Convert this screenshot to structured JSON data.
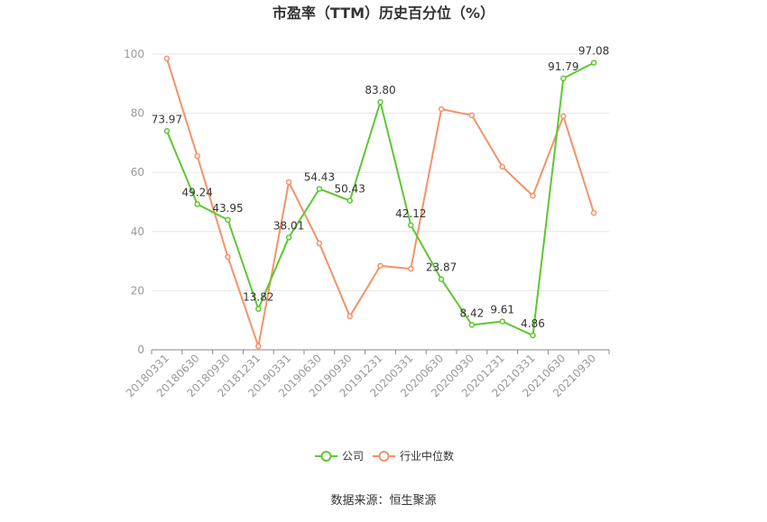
{
  "chart_data": {
    "type": "line",
    "title": "市盈率（TTM）历史百分位（%）",
    "categories": [
      "20180331",
      "20180630",
      "20180930",
      "20181231",
      "20190331",
      "20190630",
      "20190930",
      "20191231",
      "20200331",
      "20200630",
      "20200930",
      "20201231",
      "20210331",
      "20210630",
      "20210930"
    ],
    "series": [
      {
        "name": "公司",
        "color": "#5ec732",
        "show_labels": true,
        "values": [
          73.97,
          49.24,
          43.95,
          13.82,
          38.01,
          54.43,
          50.43,
          83.8,
          42.12,
          23.87,
          8.42,
          9.61,
          4.86,
          91.79,
          97.08
        ]
      },
      {
        "name": "行业中位数",
        "color": "#f4926a",
        "show_labels": false,
        "values": [
          98.5,
          65.5,
          31.4,
          1.2,
          56.7,
          36.0,
          11.3,
          28.4,
          27.4,
          81.4,
          79.3,
          61.9,
          52.1,
          79.0,
          46.3
        ]
      }
    ],
    "xlabel": "",
    "ylabel": "",
    "ylim": [
      0,
      100
    ],
    "yticks": [
      0,
      20,
      40,
      60,
      80,
      100
    ],
    "grid": true,
    "legend": "bottom-center"
  },
  "source": "数据来源：恒生聚源"
}
